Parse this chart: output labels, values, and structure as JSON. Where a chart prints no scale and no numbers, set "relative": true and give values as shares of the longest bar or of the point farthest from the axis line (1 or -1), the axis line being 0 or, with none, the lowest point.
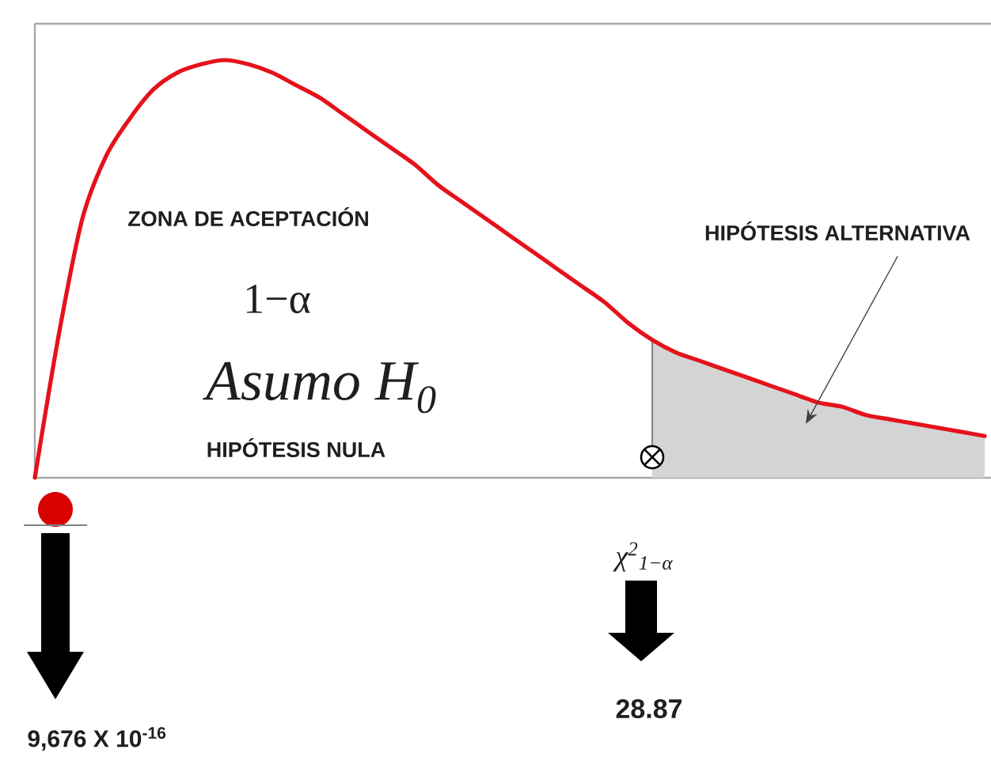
{
  "chart_data": {
    "type": "line",
    "relative": true,
    "categories": [
      null,
      null,
      null,
      null,
      null,
      null,
      null,
      null,
      null,
      null,
      null,
      null,
      null,
      null,
      null,
      null,
      null,
      null,
      null,
      null,
      null,
      null,
      null,
      null,
      null,
      null,
      null,
      null,
      null,
      null,
      null,
      null,
      null,
      null,
      null,
      null,
      null,
      null,
      null,
      null,
      null
    ],
    "series": [
      {
        "color": "#e5121b",
        "values": [
          0,
          0.34,
          0.62,
          0.77,
          0.86,
          0.93,
          0.97,
          0.99,
          1.0,
          0.99,
          0.97,
          0.94,
          0.91,
          0.87,
          0.83,
          0.79,
          0.75,
          0.7,
          0.66,
          0.62,
          0.58,
          0.54,
          0.5,
          0.46,
          0.42,
          0.37,
          0.33,
          0.3,
          0.28,
          0.26,
          0.24,
          0.22,
          0.2,
          0.18,
          0.17,
          0.15,
          0.14,
          0.13,
          0.12,
          0.11,
          0.1
        ]
      },
      {
        "type": "area",
        "color": "#d4d4d4",
        "values": [
          null,
          null,
          null,
          null,
          null,
          null,
          null,
          null,
          null,
          null,
          null,
          null,
          null,
          null,
          null,
          null,
          null,
          null,
          null,
          null,
          null,
          null,
          null,
          null,
          null,
          null,
          0.33,
          0.3,
          0.28,
          0.26,
          0.24,
          0.22,
          0.2,
          0.18,
          0.17,
          0.15,
          0.14,
          0.13,
          0.12,
          0.11,
          0.1
        ]
      }
    ],
    "annotations": [
      "ZONA DE ACEPTACIÓN",
      "1−α",
      "Asumo H$_{0}$",
      "HIPÓTESIS NULA",
      "HIPÓTESIS ALTERNATIVA",
      "χ$^{2}$$_{1−α}$",
      "28.87",
      "9,676 X 10$^{-16}$"
    ],
    "line_style": "solid",
    "marker": "none"
  }
}
